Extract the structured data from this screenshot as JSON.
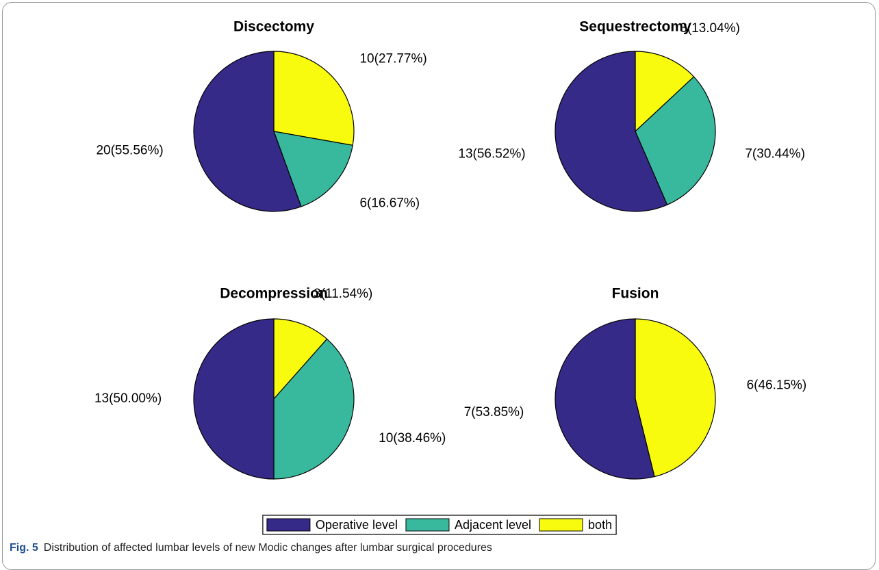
{
  "chart_data": [
    {
      "type": "pie",
      "title": "Discectomy",
      "values": [
        20,
        6,
        10
      ],
      "value_labels": [
        "20(55.56%)",
        "6(16.67%)",
        "10(27.77%)"
      ]
    },
    {
      "type": "pie",
      "title": "Sequestrectomy",
      "values": [
        13,
        7,
        3
      ],
      "value_labels": [
        "13(56.52%)",
        "7(30.44%)",
        "3(13.04%)"
      ]
    },
    {
      "type": "pie",
      "title": "Decompression",
      "values": [
        13,
        10,
        3
      ],
      "value_labels": [
        "13(50.00%)",
        "10(38.46%)",
        "3(11.54%)"
      ]
    },
    {
      "type": "pie",
      "title": "Fusion",
      "values": [
        7,
        0,
        6
      ],
      "value_labels": [
        "7(53.85%)",
        null,
        "6(46.15%)"
      ]
    }
  ],
  "legend": {
    "labels": [
      "Operative level",
      "Adjacent level",
      "both"
    ],
    "colors": [
      "#352a87",
      "#38b99e",
      "#f9fb0e"
    ]
  },
  "caption": {
    "label": "Fig. 5",
    "text": "Distribution of affected lumbar levels of new Modic changes after lumbar surgical procedures"
  }
}
